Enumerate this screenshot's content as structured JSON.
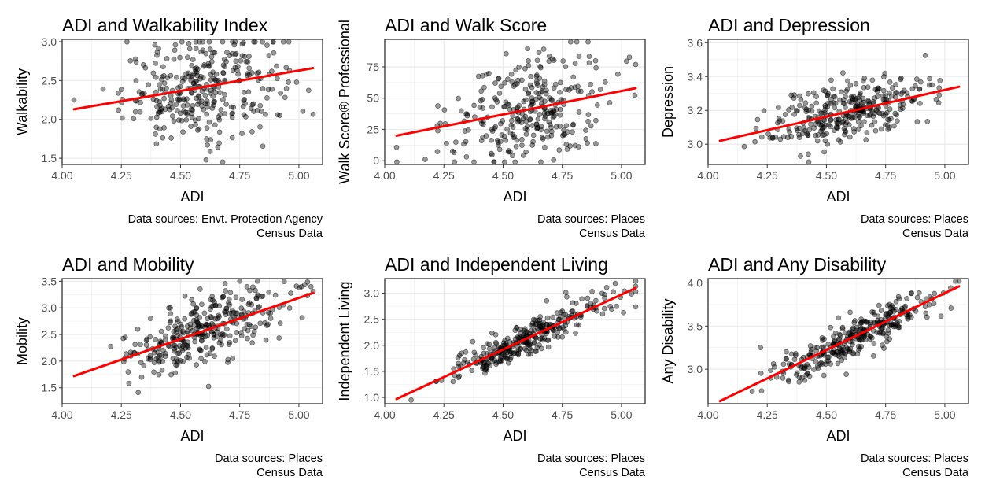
{
  "figure": {
    "panels": [
      {
        "title": "ADI and Walkability Index",
        "xlabel": "ADI",
        "ylabel": "Walkability",
        "caption": [
          "Data sources: Envt. Protection Agency",
          "Census Data"
        ]
      },
      {
        "title": "ADI and Walk Score",
        "xlabel": "ADI",
        "ylabel": "Walk Score® Professional",
        "caption": [
          "Data sources: Places",
          "Census Data"
        ]
      },
      {
        "title": "ADI and Depression",
        "xlabel": "ADI",
        "ylabel": "Depression",
        "caption": [
          "Data sources: Places",
          "Census Data"
        ]
      },
      {
        "title": "ADI and Mobility",
        "xlabel": "ADI",
        "ylabel": "Mobility",
        "caption": [
          "Data sources: Places",
          "Census Data"
        ]
      },
      {
        "title": "ADI and Independent Living",
        "xlabel": "ADI",
        "ylabel": "Independent Living",
        "caption": [
          "Data sources: Places",
          "Census Data"
        ]
      },
      {
        "title": "ADI and Any Disability",
        "xlabel": "ADI",
        "ylabel": "Any Disability",
        "caption": [
          "Data sources: Places",
          "Census Data"
        ]
      }
    ]
  },
  "colors": {
    "points": "#000000",
    "fit_line": "#ff0000",
    "grid": "#ebebeb"
  },
  "chart_data": [
    {
      "type": "scatter",
      "title": "ADI and Walkability Index",
      "xlabel": "ADI",
      "ylabel": "Walkability",
      "xlim": [
        4.0,
        5.1
      ],
      "ylim": [
        1.42,
        3.03
      ],
      "xticks": [
        "4.00",
        "4.25",
        "4.50",
        "4.75",
        "5.00"
      ],
      "yticks": [
        "1.5",
        "2.0",
        "2.5",
        "3.0"
      ],
      "fit": {
        "x": [
          4.05,
          5.06
        ],
        "y": [
          2.13,
          2.66
        ]
      },
      "series": [
        {
          "x_center": 4.6,
          "x_sd": 0.17,
          "y_sd": 0.33,
          "n": 330
        }
      ],
      "grid": true,
      "caption": [
        "Data sources: Envt. Protection Agency",
        "Census Data"
      ]
    },
    {
      "type": "scatter",
      "title": "ADI and Walk Score",
      "xlabel": "ADI",
      "ylabel": "Walk Score® Professional",
      "xlim": [
        4.0,
        5.1
      ],
      "ylim": [
        -3,
        97
      ],
      "xticks": [
        "4.00",
        "4.25",
        "4.50",
        "4.75",
        "5.00"
      ],
      "yticks": [
        "0",
        "25",
        "50",
        "75"
      ],
      "fit": {
        "x": [
          4.05,
          5.06
        ],
        "y": [
          20,
          58
        ]
      },
      "series": [
        {
          "x_center": 4.6,
          "x_sd": 0.17,
          "y_sd": 23,
          "n": 300
        }
      ],
      "grid": true,
      "caption": [
        "Data sources: Places",
        "Census Data"
      ]
    },
    {
      "type": "scatter",
      "title": "ADI and Depression",
      "xlabel": "ADI",
      "ylabel": "Depression",
      "xlim": [
        4.0,
        5.1
      ],
      "ylim": [
        2.88,
        3.62
      ],
      "xticks": [
        "4.00",
        "4.25",
        "4.50",
        "4.75",
        "5.00"
      ],
      "yticks": [
        "3.0",
        "3.2",
        "3.4",
        "3.6"
      ],
      "fit": {
        "x": [
          4.05,
          5.06
        ],
        "y": [
          3.02,
          3.34
        ]
      },
      "series": [
        {
          "x_center": 4.6,
          "x_sd": 0.17,
          "y_sd": 0.09,
          "n": 330
        }
      ],
      "grid": true,
      "caption": [
        "Data sources: Places",
        "Census Data"
      ]
    },
    {
      "type": "scatter",
      "title": "ADI and Mobility",
      "xlabel": "ADI",
      "ylabel": "Mobility",
      "xlim": [
        4.0,
        5.1
      ],
      "ylim": [
        1.2,
        3.55
      ],
      "xticks": [
        "4.00",
        "4.25",
        "4.50",
        "4.75",
        "5.00"
      ],
      "yticks": [
        "1.5",
        "2.0",
        "2.5",
        "3.0",
        "3.5"
      ],
      "fit": {
        "x": [
          4.05,
          5.06
        ],
        "y": [
          1.72,
          3.28
        ]
      },
      "series": [
        {
          "x_center": 4.6,
          "x_sd": 0.17,
          "y_sd": 0.32,
          "n": 330
        }
      ],
      "grid": true,
      "caption": [
        "Data sources: Places",
        "Census Data"
      ]
    },
    {
      "type": "scatter",
      "title": "ADI and Independent Living",
      "xlabel": "ADI",
      "ylabel": "Independent Living",
      "xlim": [
        4.0,
        5.1
      ],
      "ylim": [
        0.88,
        3.28
      ],
      "xticks": [
        "4.00",
        "4.25",
        "4.50",
        "4.75",
        "5.00"
      ],
      "yticks": [
        "1.0",
        "1.5",
        "2.0",
        "2.5",
        "3.0"
      ],
      "fit": {
        "x": [
          4.05,
          5.06
        ],
        "y": [
          0.97,
          3.1
        ]
      },
      "series": [
        {
          "x_center": 4.6,
          "x_sd": 0.17,
          "y_sd": 0.17,
          "n": 330
        }
      ],
      "grid": true,
      "caption": [
        "Data sources: Places",
        "Census Data"
      ]
    },
    {
      "type": "scatter",
      "title": "ADI and Any Disability",
      "xlabel": "ADI",
      "ylabel": "Any Disability",
      "xlim": [
        4.0,
        5.1
      ],
      "ylim": [
        2.6,
        4.05
      ],
      "xticks": [
        "4.00",
        "4.25",
        "4.50",
        "4.75",
        "5.00"
      ],
      "yticks": [
        "3.0",
        "3.5",
        "4.0"
      ],
      "fit": {
        "x": [
          4.05,
          5.06
        ],
        "y": [
          2.63,
          3.96
        ]
      },
      "series": [
        {
          "x_center": 4.6,
          "x_sd": 0.17,
          "y_sd": 0.11,
          "n": 330
        }
      ],
      "grid": true,
      "caption": [
        "Data sources: Places",
        "Census Data"
      ]
    }
  ]
}
